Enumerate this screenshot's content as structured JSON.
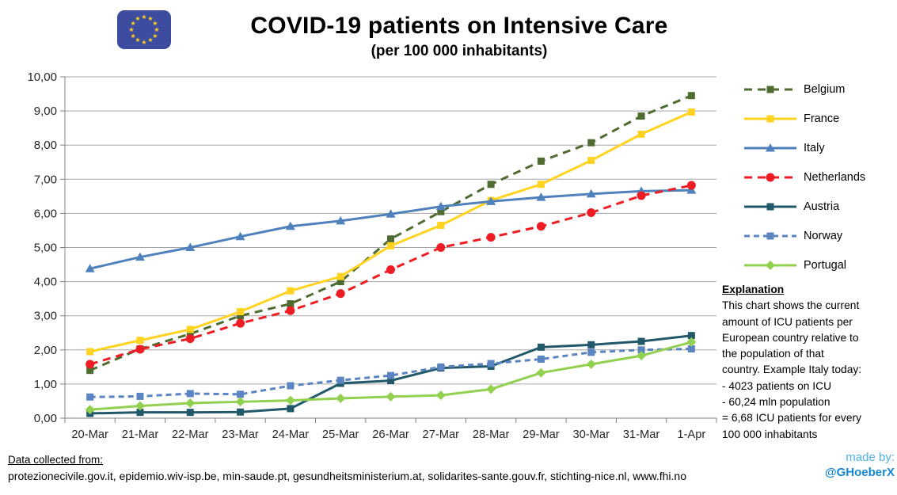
{
  "header": {
    "title": "COVID-19 patients on Intensive Care",
    "subtitle": "(per 100 000 inhabitants)",
    "flag_icon": "eu-flag"
  },
  "chart_data": {
    "type": "line",
    "title": "COVID-19 patients on Intensive Care",
    "subtitle": "(per 100 000 inhabitants)",
    "xlabel": "",
    "ylabel": "",
    "ylim": [
      0,
      10
    ],
    "grid": "horizontal",
    "legend_position": "right",
    "categories": [
      "20-Mar",
      "21-Mar",
      "22-Mar",
      "23-Mar",
      "24-Mar",
      "25-Mar",
      "26-Mar",
      "27-Mar",
      "28-Mar",
      "29-Mar",
      "30-Mar",
      "31-Mar",
      "1-Apr"
    ],
    "y_ticks": [
      "0,00",
      "1,00",
      "2,00",
      "3,00",
      "4,00",
      "5,00",
      "6,00",
      "7,00",
      "8,00",
      "9,00",
      "10,00"
    ],
    "series": [
      {
        "name": "Belgium",
        "color": "#4E6B30",
        "dash": "10 7",
        "marker": "square",
        "values": [
          1.4,
          2.03,
          2.47,
          3.0,
          3.35,
          4.0,
          5.25,
          6.05,
          6.85,
          7.53,
          8.07,
          8.85,
          9.45
        ]
      },
      {
        "name": "France",
        "color": "#FFD320",
        "dash": "",
        "marker": "square",
        "values": [
          1.95,
          2.28,
          2.6,
          3.12,
          3.73,
          4.15,
          5.05,
          5.65,
          6.38,
          6.85,
          7.55,
          8.32,
          8.97
        ]
      },
      {
        "name": "Italy",
        "color": "#4F81BD",
        "dash": "",
        "marker": "triangle",
        "values": [
          4.38,
          4.72,
          5.0,
          5.32,
          5.62,
          5.78,
          5.98,
          6.2,
          6.35,
          6.47,
          6.57,
          6.65,
          6.68
        ]
      },
      {
        "name": "Netherlands",
        "color": "#EE1D23",
        "dash": "10 7",
        "marker": "circle",
        "values": [
          1.58,
          2.02,
          2.33,
          2.78,
          3.15,
          3.65,
          4.35,
          5.0,
          5.3,
          5.62,
          6.02,
          6.52,
          6.82
        ]
      },
      {
        "name": "Austria",
        "color": "#21586A",
        "dash": "",
        "marker": "square",
        "values": [
          0.14,
          0.17,
          0.17,
          0.18,
          0.28,
          1.02,
          1.1,
          1.47,
          1.52,
          2.08,
          2.15,
          2.25,
          2.42
        ]
      },
      {
        "name": "Norway",
        "color": "#5B84C2",
        "dash": "7 5",
        "marker": "square",
        "values": [
          0.62,
          0.64,
          0.72,
          0.7,
          0.95,
          1.11,
          1.25,
          1.5,
          1.6,
          1.73,
          1.93,
          2.0,
          2.03
        ]
      },
      {
        "name": "Portugal",
        "color": "#92D050",
        "dash": "",
        "marker": "diamond",
        "values": [
          0.25,
          0.36,
          0.44,
          0.48,
          0.52,
          0.58,
          0.63,
          0.67,
          0.85,
          1.33,
          1.58,
          1.83,
          2.23
        ]
      }
    ]
  },
  "explanation": {
    "title": "Explanation",
    "lines": [
      "This chart shows the current",
      "amount of ICU patients per",
      "European country relative to",
      "the population of that",
      "country. Example Italy today:",
      "- 4023 patients on ICU",
      "- 60,24 mln population",
      "= 6,68 ICU patients for every",
      "100 000 inhabitants"
    ]
  },
  "footer": {
    "sources_label": "Data collected from:",
    "sources": "protezionecivile.gov.it,  epidemio.wiv-isp.be,  min-saude.pt, gesundheitsministerium.at,  solidarites-sante.gouv.fr,  stichting-nice.nl,  www.fhi.no",
    "made_by_label": "made by:",
    "made_by_handle": "@GHoeberX"
  },
  "colors": {
    "grid": "#A6A6A6",
    "axis": "#808080",
    "tick_text": "#262626",
    "flag_bg": "#3E4CA0",
    "flag_star": "#FFD617",
    "made_by": "#4FB0E8",
    "made_by_handle": "#1489D3"
  }
}
